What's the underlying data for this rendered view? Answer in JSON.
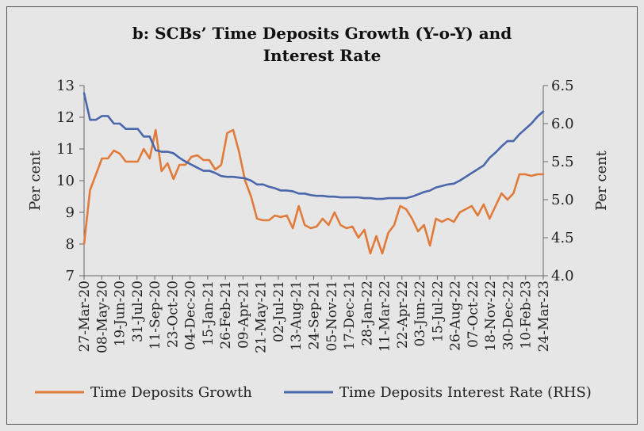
{
  "chart_data": {
    "type": "line",
    "title_line1": "b: SCBs’ Time Deposits Growth (Y-o-Y) and",
    "title_line2": "Interest Rate",
    "ylabel_left": "Per cent",
    "ylabel_right": "Per cent",
    "left_axis": {
      "min": 7,
      "max": 13,
      "ticks": [
        "7",
        "8",
        "9",
        "10",
        "11",
        "12",
        "13"
      ]
    },
    "right_axis": {
      "min": 4.0,
      "max": 6.5,
      "ticks": [
        "4.0",
        "4.5",
        "5.0",
        "5.5",
        "6.0",
        "6.5"
      ]
    },
    "x_tick_labels": [
      "27-Mar-20",
      "08-May-20",
      "19-Jun-20",
      "31-Jul-20",
      "11-Sep-20",
      "23-Oct-20",
      "04-Dec-20",
      "15-Jan-21",
      "26-Feb-21",
      "09-Apr-21",
      "21-May-21",
      "02-Jul-21",
      "13-Aug-21",
      "24-Sep-21",
      "05-Nov-21",
      "17-Dec-21",
      "28-Jan-22",
      "11-Mar-22",
      "22-Apr-22",
      "03-Jun-22",
      "15-Jul-22",
      "26-Aug-22",
      "07-Oct-22",
      "18-Nov-22",
      "30-Dec-22",
      "10-Feb-23",
      "24-Mar-23"
    ],
    "series": [
      {
        "name": "Time Deposits Growth",
        "axis": "left",
        "color": "#e07b39",
        "values": [
          8.0,
          9.7,
          10.2,
          10.7,
          10.7,
          10.95,
          10.85,
          10.6,
          10.6,
          10.6,
          11.0,
          10.7,
          11.6,
          10.3,
          10.55,
          10.05,
          10.5,
          10.5,
          10.75,
          10.8,
          10.65,
          10.65,
          10.35,
          10.5,
          11.5,
          11.6,
          10.9,
          10.0,
          9.5,
          8.8,
          8.75,
          8.75,
          8.9,
          8.85,
          8.9,
          8.5,
          9.2,
          8.6,
          8.5,
          8.55,
          8.8,
          8.6,
          9.0,
          8.6,
          8.5,
          8.55,
          8.2,
          8.45,
          7.7,
          8.25,
          7.7,
          8.35,
          8.6,
          9.2,
          9.1,
          8.8,
          8.4,
          8.6,
          7.95,
          8.8,
          8.7,
          8.8,
          8.7,
          9.0,
          9.1,
          9.2,
          8.9,
          9.25,
          8.8,
          9.2,
          9.6,
          9.4,
          9.6,
          10.2,
          10.2,
          10.15,
          10.2,
          10.2
        ]
      },
      {
        "name": "Time Deposits Interest Rate (RHS)",
        "axis": "right",
        "color": "#4a67ac",
        "values": [
          6.4,
          6.05,
          6.05,
          6.1,
          6.1,
          6.0,
          6.0,
          5.93,
          5.93,
          5.93,
          5.83,
          5.83,
          5.65,
          5.63,
          5.63,
          5.61,
          5.55,
          5.5,
          5.46,
          5.42,
          5.38,
          5.38,
          5.35,
          5.31,
          5.3,
          5.3,
          5.29,
          5.28,
          5.25,
          5.2,
          5.2,
          5.17,
          5.15,
          5.12,
          5.12,
          5.11,
          5.08,
          5.08,
          5.06,
          5.05,
          5.05,
          5.04,
          5.04,
          5.03,
          5.03,
          5.03,
          5.03,
          5.02,
          5.02,
          5.01,
          5.01,
          5.02,
          5.02,
          5.02,
          5.02,
          5.04,
          5.07,
          5.1,
          5.12,
          5.16,
          5.18,
          5.2,
          5.21,
          5.25,
          5.3,
          5.35,
          5.4,
          5.45,
          5.55,
          5.62,
          5.7,
          5.77,
          5.77,
          5.86,
          5.93,
          6.0,
          6.09,
          6.16
        ]
      }
    ],
    "legend_position": "bottom"
  }
}
